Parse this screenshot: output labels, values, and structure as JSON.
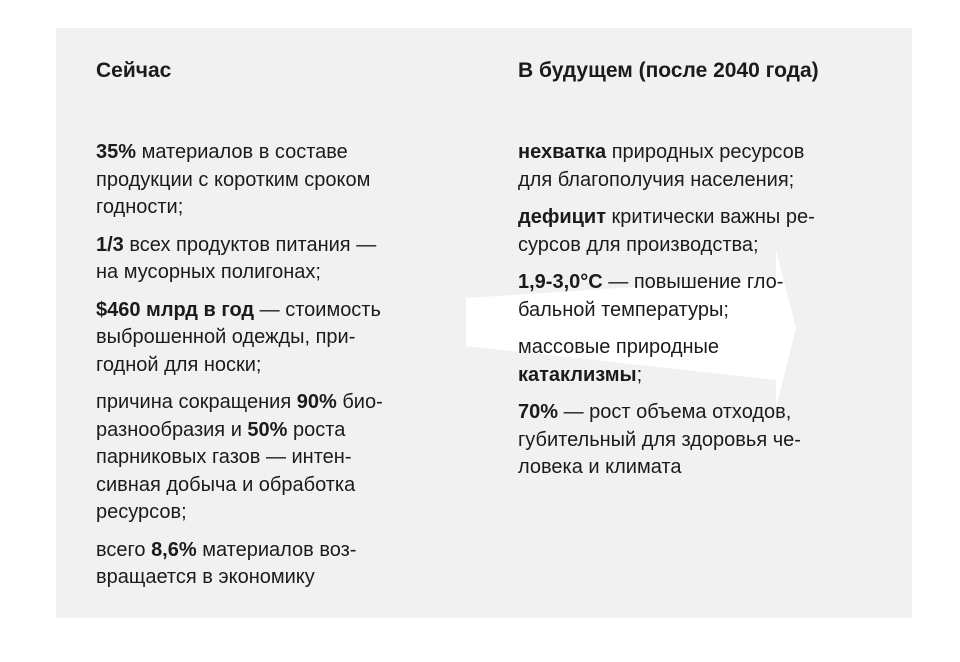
{
  "left": {
    "heading": "Сейчас",
    "items": [
      {
        "lines": [
          [
            {
              "t": "35%",
              "b": true
            },
            {
              "t": " материалов в составе"
            }
          ],
          [
            {
              "t": "продукции с коротким сроком"
            }
          ],
          [
            {
              "t": "годности;"
            }
          ]
        ]
      },
      {
        "lines": [
          [
            {
              "t": "1/3",
              "b": true
            },
            {
              "t": " всех продуктов питания —"
            }
          ],
          [
            {
              "t": "на мусорных полигонах;"
            }
          ]
        ]
      },
      {
        "lines": [
          [
            {
              "t": " $460 млрд в год",
              "b": true
            },
            {
              "t": " — стоимость"
            }
          ],
          [
            {
              "t": "выброшенной одежды, при-"
            }
          ],
          [
            {
              "t": "годной для носки;"
            }
          ]
        ]
      },
      {
        "lines": [
          [
            {
              "t": "причина сокращения "
            },
            {
              "t": "90%",
              "b": true
            },
            {
              "t": " био-"
            }
          ],
          [
            {
              "t": "разнообразия и "
            },
            {
              "t": "50%",
              "b": true
            },
            {
              "t": " роста"
            }
          ],
          [
            {
              "t": "парниковых газов — интен-"
            }
          ],
          [
            {
              "t": "сивная добыча и обработка"
            }
          ],
          [
            {
              "t": "ресурсов;"
            }
          ]
        ]
      },
      {
        "lines": [
          [
            {
              "t": "всего "
            },
            {
              "t": "8,6%",
              "b": true
            },
            {
              "t": " материалов воз-"
            }
          ],
          [
            {
              "t": "вращается в экономику"
            }
          ]
        ]
      }
    ]
  },
  "right": {
    "heading": "В будущем (после 2040 года)",
    "items": [
      {
        "lines": [
          [
            {
              "t": "нехватка",
              "b": true
            },
            {
              "t": " природных ресурсов"
            }
          ],
          [
            {
              "t": "для благополучия населения;"
            }
          ]
        ]
      },
      {
        "lines": [
          [
            {
              "t": "дефицит",
              "b": true
            },
            {
              "t": " критически важны ре-"
            }
          ],
          [
            {
              "t": "сурсов для производства;"
            }
          ]
        ]
      },
      {
        "lines": [
          [
            {
              "t": "1,9-3,0°С",
              "b": true
            },
            {
              "t": " — повышение гло-"
            }
          ],
          [
            {
              "t": "бальной температуры;"
            }
          ]
        ]
      },
      {
        "lines": [
          [
            {
              "t": "массовые природные"
            }
          ],
          [
            {
              "t": "катаклизмы",
              "b": true
            },
            {
              "t": ";"
            }
          ]
        ]
      },
      {
        "lines": [
          [
            {
              "t": "70%",
              "b": true
            },
            {
              "t": " — рост объема отходов,"
            }
          ],
          [
            {
              "t": "губительный для здоровья че-"
            }
          ],
          [
            {
              "t": "ловека и климата"
            }
          ]
        ]
      }
    ]
  },
  "colors": {
    "card_background": "#f1f1f1",
    "arrow": "#ffffff",
    "text": "#1b1b1b"
  }
}
